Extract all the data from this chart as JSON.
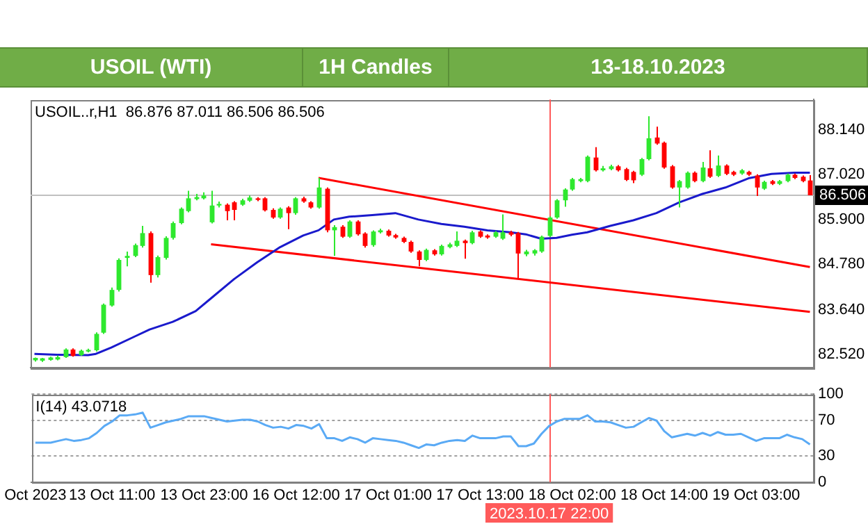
{
  "chart_data": [
    {
      "type": "candlestick",
      "title": "USOIL (WTI)",
      "subtitle": "1H Candles",
      "annotations": [
        "13-18.10.2023",
        "USOIL..r,H1  86.876 87.011 86.506 86.506"
      ],
      "categories": [
        "Oct 2023",
        null,
        null,
        null,
        null,
        null,
        null,
        null,
        null,
        null,
        "13 Oct 11:00",
        null,
        null,
        null,
        null,
        null,
        null,
        null,
        null,
        null,
        null,
        null,
        "13 Oct 23:00",
        null,
        null,
        null,
        null,
        null,
        null,
        null,
        null,
        null,
        null,
        null,
        "16 Oct 12:00",
        null,
        null,
        null,
        null,
        null,
        null,
        null,
        null,
        null,
        null,
        null,
        "17 Oct 01:00",
        null,
        null,
        null,
        null,
        null,
        null,
        null,
        null,
        null,
        null,
        null,
        "17 Oct 13:00",
        null,
        null,
        null,
        null,
        null,
        null,
        null,
        null,
        "2023.10.17 22:00",
        null,
        null,
        "18 Oct 02:00",
        null,
        null,
        null,
        null,
        null,
        null,
        null,
        null,
        null,
        null,
        null,
        "18 Oct 14:00",
        null,
        null,
        null,
        null,
        null,
        null,
        null,
        null,
        null,
        null,
        null,
        "19 Oct 03:00",
        null,
        null,
        null,
        null,
        null,
        null,
        null
      ],
      "ohlc": [
        [
          82.38,
          82.45,
          82.35,
          82.44
        ],
        [
          82.37,
          82.44,
          82.34,
          82.43
        ],
        [
          82.39,
          82.47,
          82.37,
          82.45
        ],
        [
          82.4,
          82.5,
          82.38,
          82.46
        ],
        [
          82.46,
          82.68,
          82.44,
          82.65
        ],
        [
          82.65,
          82.68,
          82.47,
          82.49
        ],
        [
          82.51,
          82.65,
          82.49,
          82.62
        ],
        [
          82.6,
          82.67,
          82.58,
          82.64
        ],
        [
          82.63,
          83.08,
          82.6,
          83.04
        ],
        [
          83.07,
          83.8,
          83.04,
          83.77
        ],
        [
          83.75,
          84.2,
          83.72,
          84.14
        ],
        [
          84.14,
          84.93,
          84.1,
          84.89
        ],
        [
          84.94,
          85.1,
          84.73,
          84.99
        ],
        [
          84.99,
          85.3,
          84.96,
          85.26
        ],
        [
          85.24,
          85.74,
          85.2,
          85.56
        ],
        [
          85.56,
          85.6,
          84.32,
          84.51
        ],
        [
          84.51,
          85.0,
          84.45,
          84.96
        ],
        [
          84.94,
          85.48,
          84.9,
          85.44
        ],
        [
          85.44,
          85.85,
          85.4,
          85.81
        ],
        [
          85.81,
          86.2,
          85.78,
          86.17
        ],
        [
          86.11,
          86.62,
          86.08,
          86.43
        ],
        [
          86.41,
          86.54,
          86.38,
          86.46
        ],
        [
          86.43,
          86.58,
          86.4,
          86.5
        ],
        [
          85.83,
          86.62,
          85.8,
          86.25
        ],
        [
          86.25,
          86.35,
          86.2,
          86.29
        ],
        [
          86.27,
          86.3,
          85.88,
          86.11
        ],
        [
          86.33,
          86.36,
          85.88,
          86.14
        ],
        [
          86.27,
          86.42,
          86.24,
          86.38
        ],
        [
          86.37,
          86.5,
          86.34,
          86.45
        ],
        [
          86.43,
          86.46,
          86.36,
          86.39
        ],
        [
          86.43,
          86.46,
          86.1,
          86.13
        ],
        [
          86.14,
          86.18,
          85.92,
          85.95
        ],
        [
          85.95,
          86.2,
          85.92,
          86.17
        ],
        [
          86.2,
          86.23,
          85.66,
          86.06
        ],
        [
          86.06,
          86.46,
          86.02,
          86.43
        ],
        [
          86.43,
          86.47,
          86.32,
          86.35
        ],
        [
          86.33,
          86.36,
          86.17,
          86.2
        ],
        [
          86.2,
          86.94,
          86.17,
          86.7
        ],
        [
          86.67,
          86.7,
          85.58,
          85.63
        ],
        [
          85.63,
          85.76,
          84.99,
          85.71
        ],
        [
          85.72,
          85.76,
          85.44,
          85.47
        ],
        [
          85.47,
          85.88,
          85.44,
          85.85
        ],
        [
          85.85,
          85.88,
          85.5,
          85.53
        ],
        [
          85.55,
          85.58,
          85.2,
          85.24
        ],
        [
          85.26,
          85.63,
          85.22,
          85.6
        ],
        [
          85.58,
          85.67,
          85.55,
          85.63
        ],
        [
          85.62,
          85.65,
          85.47,
          85.5
        ],
        [
          85.51,
          85.54,
          85.42,
          85.45
        ],
        [
          85.44,
          85.47,
          85.31,
          85.34
        ],
        [
          85.34,
          85.37,
          85.07,
          85.1
        ],
        [
          85.1,
          85.13,
          84.73,
          84.89
        ],
        [
          84.89,
          85.17,
          84.86,
          85.14
        ],
        [
          85.13,
          85.16,
          85.0,
          85.03
        ],
        [
          85.03,
          85.27,
          85.0,
          85.24
        ],
        [
          85.21,
          85.32,
          85.18,
          85.28
        ],
        [
          85.24,
          85.6,
          85.21,
          85.37
        ],
        [
          85.37,
          85.4,
          84.92,
          85.31
        ],
        [
          85.31,
          85.62,
          85.28,
          85.58
        ],
        [
          85.6,
          85.63,
          85.44,
          85.47
        ],
        [
          85.5,
          85.53,
          85.42,
          85.45
        ],
        [
          85.47,
          85.61,
          85.44,
          85.58
        ],
        [
          85.42,
          86.03,
          85.39,
          85.58
        ],
        [
          85.58,
          85.62,
          85.48,
          85.52
        ],
        [
          85.56,
          85.59,
          84.43,
          85.05
        ],
        [
          85.03,
          85.14,
          84.98,
          85.1
        ],
        [
          85.05,
          85.16,
          85.0,
          85.13
        ],
        [
          85.1,
          85.5,
          85.07,
          85.47
        ],
        [
          85.49,
          85.98,
          85.46,
          85.95
        ],
        [
          85.95,
          86.41,
          85.92,
          86.38
        ],
        [
          86.38,
          86.68,
          86.22,
          86.65
        ],
        [
          86.65,
          86.94,
          86.62,
          86.91
        ],
        [
          86.86,
          86.94,
          86.83,
          86.91
        ],
        [
          86.86,
          87.5,
          86.83,
          87.47
        ],
        [
          87.45,
          87.71,
          87.1,
          87.13
        ],
        [
          87.13,
          87.24,
          87.1,
          87.18
        ],
        [
          87.16,
          87.27,
          87.13,
          87.23
        ],
        [
          87.23,
          87.26,
          87.1,
          87.13
        ],
        [
          87.16,
          87.19,
          86.86,
          86.89
        ],
        [
          87.09,
          87.12,
          86.81,
          86.88
        ],
        [
          87.02,
          87.44,
          86.99,
          87.41
        ],
        [
          87.41,
          88.48,
          87.38,
          87.93
        ],
        [
          87.95,
          88.22,
          87.77,
          87.8
        ],
        [
          87.82,
          87.85,
          87.17,
          87.2
        ],
        [
          87.23,
          87.26,
          86.67,
          86.7
        ],
        [
          86.7,
          86.89,
          86.2,
          86.86
        ],
        [
          86.7,
          87.1,
          86.67,
          87.07
        ],
        [
          87.07,
          87.1,
          86.83,
          86.86
        ],
        [
          86.86,
          87.34,
          86.83,
          87.2
        ],
        [
          87.18,
          87.63,
          86.94,
          86.97
        ],
        [
          86.99,
          87.5,
          86.96,
          87.25
        ],
        [
          87.25,
          87.28,
          87.01,
          87.04
        ],
        [
          87.09,
          87.12,
          86.99,
          87.02
        ],
        [
          87.05,
          87.16,
          87.02,
          87.13
        ],
        [
          87.09,
          87.12,
          86.99,
          87.02
        ],
        [
          87.0,
          87.03,
          86.49,
          86.7
        ],
        [
          86.67,
          86.87,
          86.64,
          86.84
        ],
        [
          86.86,
          86.89,
          86.76,
          86.79
        ],
        [
          86.79,
          86.89,
          86.76,
          86.86
        ],
        [
          86.86,
          87.05,
          86.83,
          87.02
        ],
        [
          87.02,
          87.05,
          86.91,
          86.94
        ],
        [
          86.97,
          87.0,
          86.83,
          86.86
        ],
        [
          86.876,
          87.011,
          86.506,
          86.506
        ]
      ],
      "colors": [
        "#2ee82e",
        "#2ee82e",
        "#2ee82e",
        "#2ee82e",
        "#2ee82e",
        "#ff0000",
        "#2ee82e",
        "#2ee82e",
        "#2ee82e",
        "#2ee82e",
        "#2ee82e",
        "#2ee82e",
        "#2ee82e",
        "#2ee82e",
        "#2ee82e",
        "#ff0000",
        "#2ee82e",
        "#2ee82e",
        "#2ee82e",
        "#2ee82e",
        "#2ee82e",
        "#2ee82e",
        "#2ee82e",
        "#2ee82e",
        "#2ee82e",
        "#ff0000",
        "#ff0000",
        "#2ee82e",
        "#2ee82e",
        "#ff0000",
        "#ff0000",
        "#ff0000",
        "#2ee82e",
        "#ff0000",
        "#2ee82e",
        "#ff0000",
        "#ff0000",
        "#2ee82e",
        "#ff0000",
        "#2ee82e",
        "#ff0000",
        "#2ee82e",
        "#ff0000",
        "#ff0000",
        "#2ee82e",
        "#2ee82e",
        "#ff0000",
        "#ff0000",
        "#ff0000",
        "#ff0000",
        "#ff0000",
        "#2ee82e",
        "#ff0000",
        "#2ee82e",
        "#2ee82e",
        "#2ee82e",
        "#ff0000",
        "#2ee82e",
        "#ff0000",
        "#ff0000",
        "#2ee82e",
        "#2ee82e",
        "#ff0000",
        "#ff0000",
        "#2ee82e",
        "#2ee82e",
        "#2ee82e",
        "#2ee82e",
        "#2ee82e",
        "#2ee82e",
        "#2ee82e",
        "#2ee82e",
        "#2ee82e",
        "#ff0000",
        "#2ee82e",
        "#2ee82e",
        "#ff0000",
        "#ff0000",
        "#ff0000",
        "#2ee82e",
        "#2ee82e",
        "#ff0000",
        "#ff0000",
        "#ff0000",
        "#2ee82e",
        "#2ee82e",
        "#ff0000",
        "#2ee82e",
        "#ff0000",
        "#2ee82e",
        "#ff0000",
        "#ff0000",
        "#2ee82e",
        "#ff0000",
        "#ff0000",
        "#2ee82e",
        "#ff0000",
        "#2ee82e",
        "#2ee82e",
        "#ff0000",
        "#ff0000",
        "#ff0000"
      ],
      "series": [
        {
          "type": "line",
          "color": "#1a1acc",
          "values": [
            82.54,
            null,
            null,
            82.52,
            null,
            null,
            null,
            82.51,
            82.54,
            null,
            82.7,
            null,
            null,
            82.97,
            null,
            83.15,
            null,
            null,
            83.34,
            null,
            null,
            83.61,
            null,
            83.93,
            null,
            null,
            84.41,
            null,
            null,
            84.83,
            null,
            null,
            85.21,
            null,
            null,
            85.5,
            null,
            85.63,
            null,
            85.9,
            null,
            85.97,
            null,
            null,
            86.01,
            null,
            null,
            86.06,
            null,
            null,
            85.9,
            null,
            null,
            85.79,
            null,
            null,
            85.72,
            null,
            null,
            85.63,
            null,
            null,
            85.58,
            null,
            85.53,
            null,
            85.42,
            null,
            85.44,
            null,
            85.52,
            null,
            85.58,
            null,
            null,
            85.74,
            null,
            null,
            85.88,
            null,
            null,
            86.06,
            null,
            null,
            86.33,
            null,
            null,
            86.54,
            null,
            null,
            86.7,
            null,
            null,
            86.93,
            null,
            null,
            87.04,
            null,
            null,
            87.07,
            null,
            87.07
          ]
        },
        {
          "type": "line",
          "color": "#ff0000",
          "values": [
            null,
            null,
            null,
            null,
            null,
            null,
            null,
            null,
            null,
            null,
            null,
            null,
            null,
            null,
            null,
            null,
            null,
            null,
            null,
            null,
            null,
            null,
            null,
            null,
            null,
            null,
            null,
            null,
            null,
            null,
            null,
            null,
            null,
            null,
            null,
            null,
            null,
            86.94,
            null,
            null,
            null,
            null,
            null,
            null,
            null,
            null,
            null,
            null,
            null,
            null,
            null,
            null,
            null,
            null,
            null,
            null,
            null,
            null,
            null,
            null,
            null,
            null,
            null,
            null,
            null,
            null,
            null,
            null,
            null,
            null,
            null,
            null,
            null,
            null,
            null,
            null,
            null,
            null,
            null,
            null,
            null,
            null,
            null,
            null,
            null,
            null,
            null,
            null,
            null,
            null,
            null,
            null,
            null,
            null,
            null,
            null,
            null,
            null,
            null,
            null,
            null,
            84.71
          ]
        },
        {
          "type": "line",
          "color": "#ff0000",
          "values": [
            null,
            null,
            null,
            null,
            null,
            null,
            null,
            null,
            null,
            null,
            null,
            null,
            null,
            null,
            null,
            null,
            null,
            null,
            null,
            null,
            null,
            null,
            null,
            85.28,
            null,
            null,
            null,
            null,
            null,
            null,
            null,
            null,
            null,
            null,
            null,
            null,
            null,
            null,
            null,
            null,
            null,
            null,
            null,
            null,
            null,
            null,
            null,
            null,
            null,
            null,
            null,
            null,
            null,
            null,
            null,
            null,
            null,
            null,
            null,
            null,
            null,
            null,
            null,
            null,
            null,
            null,
            null,
            null,
            null,
            null,
            null,
            null,
            null,
            null,
            null,
            null,
            null,
            null,
            null,
            null,
            null,
            null,
            null,
            null,
            null,
            null,
            null,
            null,
            null,
            null,
            null,
            null,
            null,
            null,
            null,
            null,
            null,
            null,
            null,
            null,
            null,
            83.59
          ]
        }
      ],
      "ylim": [
        82.2,
        88.9
      ],
      "yticks": [
        {
          "value": 82.52,
          "label": "82.520"
        },
        {
          "value": 83.64,
          "label": "83.640"
        },
        {
          "value": 84.78,
          "label": "84.780"
        },
        {
          "value": 85.9,
          "label": "85.900"
        },
        {
          "value": 87.02,
          "label": "87.020"
        },
        {
          "value": 88.14,
          "label": "88.140"
        }
      ],
      "tick_labels": "y",
      "ref_lines": [
        {
          "axis": "y",
          "value": 86.506,
          "label": "86.506",
          "color": "#c0c0c0"
        },
        {
          "axis": "x",
          "value": "2023.10.17 22:00",
          "color": "#ff5a5a"
        }
      ]
    },
    {
      "type": "line",
      "annotations": [
        "I(14) 43.0718"
      ],
      "categories": [
        "Oct 2023",
        null,
        null,
        null,
        null,
        null,
        null,
        null,
        null,
        null,
        "13 Oct 11:00",
        null,
        null,
        null,
        null,
        null,
        null,
        null,
        null,
        null,
        null,
        null,
        "13 Oct 23:00",
        null,
        null,
        null,
        null,
        null,
        null,
        null,
        null,
        null,
        null,
        null,
        "16 Oct 12:00",
        null,
        null,
        null,
        null,
        null,
        null,
        null,
        null,
        null,
        null,
        null,
        "17 Oct 01:00",
        null,
        null,
        null,
        null,
        null,
        null,
        null,
        null,
        null,
        null,
        null,
        "17 Oct 13:00",
        null,
        null,
        null,
        null,
        null,
        null,
        null,
        null,
        "2023.10.17 22:00",
        null,
        null,
        "18 Oct 02:00",
        null,
        null,
        null,
        null,
        null,
        null,
        null,
        null,
        null,
        null,
        null,
        "18 Oct 14:00",
        null,
        null,
        null,
        null,
        null,
        null,
        null,
        null,
        null,
        null,
        null,
        "19 Oct 03:00",
        null,
        null,
        null,
        null,
        null,
        null,
        null
      ],
      "values": [
        45,
        45,
        45,
        47,
        49,
        47,
        48,
        50,
        56,
        64,
        69,
        76,
        76,
        77,
        79,
        62,
        65,
        68,
        70,
        72,
        75,
        75,
        75,
        73,
        71,
        69,
        70,
        71,
        71,
        69,
        65,
        62,
        63,
        61,
        65,
        64,
        61,
        66,
        50,
        50,
        47,
        51,
        49,
        45,
        50,
        49,
        48,
        47,
        45,
        42,
        39,
        43,
        42,
        45,
        47,
        48,
        47,
        53,
        50,
        50,
        50,
        52,
        52,
        41,
        41,
        44,
        55,
        64,
        69,
        72,
        72,
        72,
        76,
        69,
        69,
        68,
        65,
        62,
        63,
        68,
        73,
        70,
        58,
        51,
        53,
        55,
        53,
        56,
        53,
        57,
        54,
        54,
        55,
        51,
        47,
        50,
        50,
        50,
        54,
        51,
        49,
        43
      ],
      "color": "#5aaaf5",
      "ylim": [
        0,
        100
      ],
      "yticks": [
        0,
        30,
        70,
        100
      ],
      "grid": "y",
      "ref_lines": [
        {
          "axis": "x",
          "value": "2023.10.17 22:00",
          "color": "#ff5a5a"
        }
      ]
    }
  ]
}
